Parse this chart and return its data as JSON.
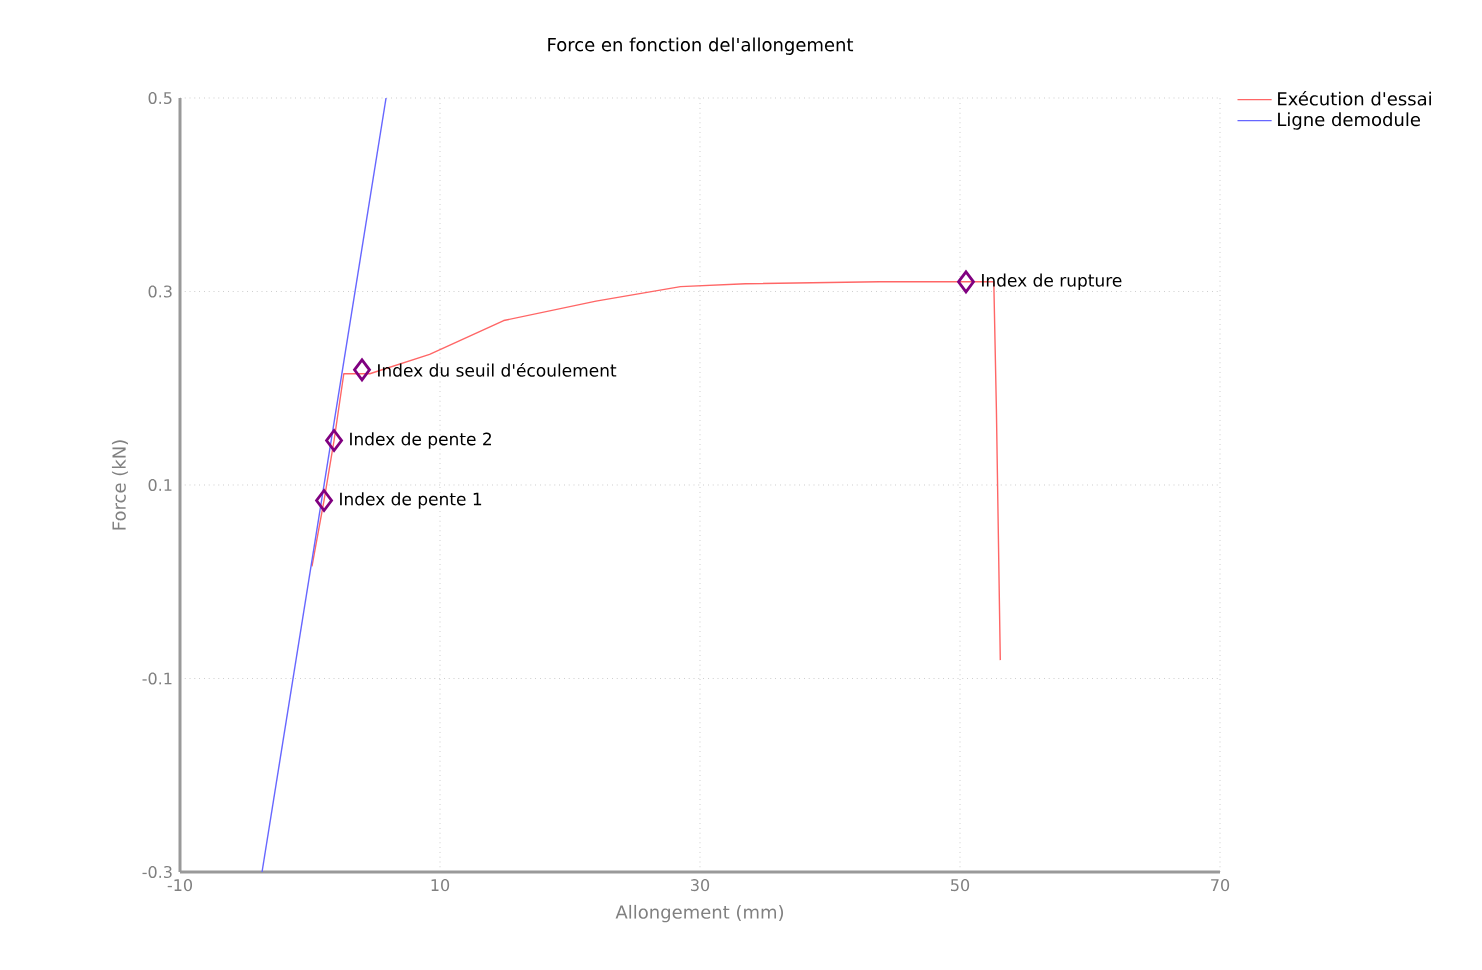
{
  "chart_data": {
    "type": "line",
    "title": "Force en fonction del'allongement",
    "xlabel": "Allongement (mm)",
    "ylabel": "Force (kN)",
    "xlim": [
      -10,
      70
    ],
    "ylim": [
      -0.3,
      0.5
    ],
    "xticks": [
      -10,
      10,
      30,
      50,
      70
    ],
    "yticks": [
      -0.3,
      -0.1,
      0.1,
      0.3,
      0.5
    ],
    "grid": true,
    "legend": "top right",
    "marker": "none",
    "line_style": "solid",
    "series": [
      {
        "name": "Exécution d'essai",
        "color": "#ff6666",
        "x": [
          0.15,
          1.08,
          1.85,
          2.6,
          4.6,
          9.2,
          14.9,
          22,
          28.5,
          33.5,
          43.8,
          52.6,
          52.8,
          53.1
        ],
        "values": [
          0.016,
          0.084,
          0.146,
          0.215,
          0.215,
          0.235,
          0.27,
          0.29,
          0.305,
          0.308,
          0.31,
          0.31,
          0.178,
          -0.081
        ]
      },
      {
        "name": "Ligne demodule",
        "color": "#6666ff",
        "x": [
          -3.69,
          5.85
        ],
        "values": [
          -0.3,
          0.5
        ]
      },
      {
        "type": "scatter",
        "color": "#800080",
        "marker": "diamond",
        "x": [
          1.08,
          1.85,
          4.0,
          50.46
        ],
        "values": [
          0.084,
          0.146,
          0.219,
          0.31
        ]
      }
    ],
    "annotations": [
      {
        "text": "Index de pente 1",
        "x": 1.08,
        "y": 0.084
      },
      {
        "text": "Index de pente 2",
        "x": 1.85,
        "y": 0.146
      },
      {
        "text": "Index du seuil d'écoulement",
        "x": 4.0,
        "y": 0.219
      },
      {
        "text": "Index de rupture",
        "x": 50.46,
        "y": 0.31
      }
    ]
  }
}
